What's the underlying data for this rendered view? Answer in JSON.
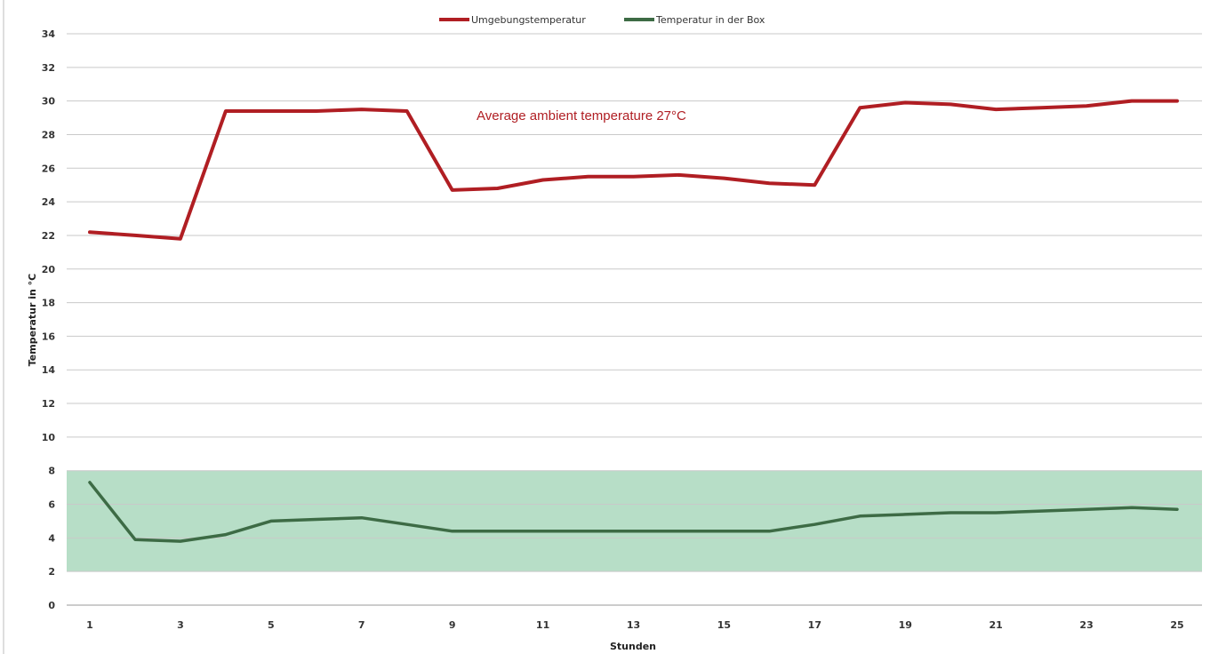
{
  "chart_data": {
    "type": "line",
    "title": "",
    "xlabel": "Stunden",
    "ylabel": "Temperatur in °C",
    "x": [
      1,
      2,
      3,
      4,
      5,
      6,
      7,
      8,
      9,
      10,
      11,
      12,
      13,
      14,
      15,
      16,
      17,
      18,
      19,
      20,
      21,
      22,
      23,
      24,
      25
    ],
    "x_tick_labels": [
      "1",
      "3",
      "5",
      "7",
      "9",
      "11",
      "13",
      "15",
      "17",
      "19",
      "21",
      "23",
      "25"
    ],
    "y_tick_labels": [
      "0",
      "2",
      "4",
      "6",
      "8",
      "10",
      "12",
      "14",
      "16",
      "18",
      "20",
      "22",
      "24",
      "26",
      "28",
      "30",
      "32",
      "34"
    ],
    "ylim": [
      0,
      34
    ],
    "xlim": [
      1,
      25
    ],
    "grid": true,
    "legend_position": "top-center",
    "series": [
      {
        "name": "Umgebungstemperatur",
        "color": "#b01e23",
        "values": [
          22.2,
          22.0,
          21.8,
          29.4,
          29.4,
          29.4,
          29.5,
          29.4,
          24.7,
          24.8,
          25.3,
          25.5,
          25.5,
          25.6,
          25.4,
          25.1,
          25.0,
          29.6,
          29.9,
          29.8,
          29.5,
          29.6,
          29.7,
          30.0,
          30.0
        ]
      },
      {
        "name": "Temperatur in der Box",
        "color": "#3d6b45",
        "values": [
          7.3,
          3.9,
          3.8,
          4.2,
          5.0,
          5.1,
          5.2,
          4.8,
          4.4,
          4.4,
          4.4,
          4.4,
          4.4,
          4.4,
          4.4,
          4.4,
          4.8,
          5.3,
          5.4,
          5.5,
          5.5,
          5.6,
          5.7,
          5.8,
          5.7
        ]
      }
    ],
    "band": {
      "from": 2,
      "to": 8,
      "color": "#9fd3b4"
    },
    "annotation": {
      "text": "Average ambient temperature 27°C",
      "color": "#b01e23"
    }
  }
}
